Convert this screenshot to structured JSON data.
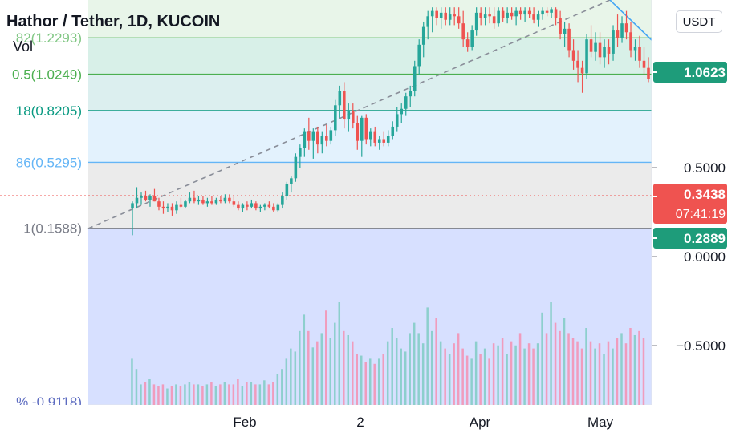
{
  "header": {
    "title": "Hathor / Tether, 1D, KUCOIN",
    "volume_label": "Vol",
    "currency": "USDT"
  },
  "colors": {
    "up": "#26a69a",
    "down": "#ef5350",
    "grid": "#f0f3fa",
    "axis_text": "#131722"
  },
  "chart_data": {
    "type": "candlestick",
    "x_ticks": [
      "Feb",
      "2",
      "Apr",
      "May"
    ],
    "y_ticks": [
      "0.5000",
      "0.0000",
      "−0.5000"
    ],
    "price_tags": [
      {
        "label": "1.0623",
        "color": "#1e9c7a"
      },
      {
        "label": "0.3438",
        "sublabel": "07:41:19",
        "color": "#ef5350"
      },
      {
        "label": "0.2889",
        "color": "#1e9c7a"
      }
    ],
    "fib_levels": [
      {
        "label": "82(1.2293)",
        "price": 1.2293,
        "color": "#81c784"
      },
      {
        "label": "0.5(1.0249)",
        "price": 1.0249,
        "color": "#4caf50"
      },
      {
        "label": "18(0.8205)",
        "price": 0.8205,
        "color": "#089981"
      },
      {
        "label": "86(0.5295)",
        "price": 0.5295,
        "color": "#64b5f6"
      },
      {
        "label": "1(0.1588)",
        "price": 0.1588,
        "color": "#787b86"
      },
      {
        "label": "% -0.9118)",
        "price": -0.9118,
        "color": "#5c6bc0"
      }
    ],
    "candles": {
      "start": "2022-01-12",
      "ohlc": [
        [
          0.27,
          0.31,
          0.12,
          0.3
        ],
        [
          0.3,
          0.39,
          0.27,
          0.33
        ],
        [
          0.33,
          0.36,
          0.29,
          0.34
        ],
        [
          0.34,
          0.37,
          0.31,
          0.32
        ],
        [
          0.32,
          0.35,
          0.28,
          0.34
        ],
        [
          0.34,
          0.38,
          0.31,
          0.31
        ],
        [
          0.31,
          0.33,
          0.26,
          0.28
        ],
        [
          0.28,
          0.31,
          0.24,
          0.27
        ],
        [
          0.27,
          0.3,
          0.25,
          0.28
        ],
        [
          0.28,
          0.3,
          0.23,
          0.26
        ],
        [
          0.26,
          0.31,
          0.24,
          0.29
        ],
        [
          0.29,
          0.33,
          0.27,
          0.28
        ],
        [
          0.28,
          0.32,
          0.27,
          0.31
        ],
        [
          0.31,
          0.36,
          0.3,
          0.33
        ],
        [
          0.33,
          0.37,
          0.3,
          0.31
        ],
        [
          0.31,
          0.34,
          0.29,
          0.32
        ],
        [
          0.32,
          0.34,
          0.29,
          0.3
        ],
        [
          0.3,
          0.33,
          0.28,
          0.31
        ],
        [
          0.31,
          0.34,
          0.29,
          0.3
        ],
        [
          0.3,
          0.33,
          0.29,
          0.32
        ],
        [
          0.32,
          0.34,
          0.3,
          0.31
        ],
        [
          0.31,
          0.35,
          0.3,
          0.33
        ],
        [
          0.33,
          0.35,
          0.3,
          0.31
        ],
        [
          0.31,
          0.34,
          0.28,
          0.29
        ],
        [
          0.29,
          0.31,
          0.26,
          0.27
        ],
        [
          0.27,
          0.3,
          0.25,
          0.29
        ],
        [
          0.29,
          0.31,
          0.26,
          0.28
        ],
        [
          0.28,
          0.32,
          0.27,
          0.3
        ],
        [
          0.3,
          0.31,
          0.26,
          0.27
        ],
        [
          0.27,
          0.29,
          0.25,
          0.28
        ],
        [
          0.28,
          0.3,
          0.26,
          0.29
        ],
        [
          0.29,
          0.31,
          0.27,
          0.28
        ],
        [
          0.28,
          0.3,
          0.25,
          0.26
        ],
        [
          0.26,
          0.3,
          0.25,
          0.29
        ],
        [
          0.29,
          0.36,
          0.27,
          0.34
        ],
        [
          0.34,
          0.42,
          0.32,
          0.41
        ],
        [
          0.41,
          0.45,
          0.36,
          0.44
        ],
        [
          0.44,
          0.58,
          0.42,
          0.56
        ],
        [
          0.56,
          0.63,
          0.5,
          0.61
        ],
        [
          0.61,
          0.72,
          0.56,
          0.7
        ],
        [
          0.7,
          0.78,
          0.6,
          0.65
        ],
        [
          0.65,
          0.72,
          0.55,
          0.7
        ],
        [
          0.7,
          0.73,
          0.58,
          0.63
        ],
        [
          0.63,
          0.7,
          0.58,
          0.68
        ],
        [
          0.68,
          0.74,
          0.62,
          0.65
        ],
        [
          0.65,
          0.73,
          0.63,
          0.71
        ],
        [
          0.71,
          0.88,
          0.68,
          0.85
        ],
        [
          0.85,
          0.96,
          0.78,
          0.93
        ],
        [
          0.93,
          0.98,
          0.72,
          0.77
        ],
        [
          0.77,
          0.86,
          0.7,
          0.82
        ],
        [
          0.82,
          0.86,
          0.72,
          0.75
        ],
        [
          0.75,
          0.79,
          0.6,
          0.65
        ],
        [
          0.65,
          0.79,
          0.56,
          0.78
        ],
        [
          0.78,
          0.8,
          0.63,
          0.66
        ],
        [
          0.66,
          0.72,
          0.62,
          0.7
        ],
        [
          0.7,
          0.73,
          0.62,
          0.64
        ],
        [
          0.64,
          0.68,
          0.6,
          0.66
        ],
        [
          0.66,
          0.7,
          0.62,
          0.64
        ],
        [
          0.64,
          0.71,
          0.62,
          0.68
        ],
        [
          0.68,
          0.76,
          0.66,
          0.73
        ],
        [
          0.73,
          0.84,
          0.7,
          0.8
        ],
        [
          0.8,
          0.86,
          0.75,
          0.83
        ],
        [
          0.83,
          0.92,
          0.79,
          0.9
        ],
        [
          0.9,
          0.96,
          0.84,
          0.93
        ],
        [
          0.93,
          1.1,
          0.9,
          1.07
        ],
        [
          1.07,
          1.22,
          1.02,
          1.19
        ],
        [
          1.19,
          1.32,
          1.12,
          1.29
        ],
        [
          1.29,
          1.38,
          1.22,
          1.35
        ],
        [
          1.35,
          1.4,
          1.26,
          1.38
        ],
        [
          1.38,
          1.4,
          1.3,
          1.34
        ],
        [
          1.34,
          1.4,
          1.28,
          1.37
        ],
        [
          1.37,
          1.4,
          1.3,
          1.33
        ],
        [
          1.33,
          1.4,
          1.3,
          1.36
        ],
        [
          1.36,
          1.4,
          1.3,
          1.35
        ],
        [
          1.35,
          1.4,
          1.28,
          1.31
        ],
        [
          1.31,
          1.38,
          1.18,
          1.22
        ],
        [
          1.22,
          1.26,
          1.15,
          1.18
        ],
        [
          1.18,
          1.3,
          1.16,
          1.27
        ],
        [
          1.27,
          1.4,
          1.24,
          1.37
        ],
        [
          1.37,
          1.4,
          1.3,
          1.34
        ],
        [
          1.34,
          1.4,
          1.3,
          1.36
        ],
        [
          1.36,
          1.4,
          1.31,
          1.35
        ],
        [
          1.35,
          1.4,
          1.28,
          1.31
        ],
        [
          1.31,
          1.4,
          1.29,
          1.38
        ],
        [
          1.38,
          1.4,
          1.32,
          1.34
        ],
        [
          1.34,
          1.4,
          1.31,
          1.37
        ],
        [
          1.37,
          1.4,
          1.33,
          1.35
        ],
        [
          1.35,
          1.4,
          1.3,
          1.38
        ],
        [
          1.38,
          1.4,
          1.33,
          1.36
        ],
        [
          1.36,
          1.4,
          1.32,
          1.38
        ],
        [
          1.38,
          1.4,
          1.34,
          1.36
        ],
        [
          1.36,
          1.4,
          1.31,
          1.33
        ],
        [
          1.33,
          1.38,
          1.29,
          1.36
        ],
        [
          1.36,
          1.4,
          1.33,
          1.38
        ],
        [
          1.38,
          1.4,
          1.35,
          1.37
        ],
        [
          1.37,
          1.4,
          1.34,
          1.39
        ],
        [
          1.39,
          1.4,
          1.3,
          1.34
        ],
        [
          1.34,
          1.38,
          1.22,
          1.25
        ],
        [
          1.25,
          1.32,
          1.18,
          1.28
        ],
        [
          1.28,
          1.31,
          1.12,
          1.16
        ],
        [
          1.16,
          1.22,
          1.05,
          1.1
        ],
        [
          1.1,
          1.16,
          0.98,
          1.06
        ],
        [
          1.06,
          1.1,
          0.92,
          1.03
        ],
        [
          1.03,
          1.25,
          1.0,
          1.22
        ],
        [
          1.22,
          1.3,
          1.12,
          1.15
        ],
        [
          1.15,
          1.26,
          1.1,
          1.2
        ],
        [
          1.2,
          1.26,
          1.08,
          1.12
        ],
        [
          1.12,
          1.22,
          1.06,
          1.18
        ],
        [
          1.18,
          1.22,
          1.08,
          1.14
        ],
        [
          1.14,
          1.3,
          1.1,
          1.27
        ],
        [
          1.27,
          1.36,
          1.18,
          1.23
        ],
        [
          1.23,
          1.35,
          1.2,
          1.31
        ],
        [
          1.31,
          1.38,
          1.22,
          1.26
        ],
        [
          1.26,
          1.32,
          1.12,
          1.16
        ],
        [
          1.16,
          1.22,
          1.1,
          1.18
        ],
        [
          1.18,
          1.24,
          1.06,
          1.1
        ],
        [
          1.1,
          1.18,
          1.02,
          1.06
        ],
        [
          1.06,
          1.12,
          0.98,
          1.0
        ]
      ],
      "volume": [
        0.45,
        0.35,
        0.2,
        0.22,
        0.25,
        0.2,
        0.18,
        0.2,
        0.16,
        0.18,
        0.2,
        0.18,
        0.2,
        0.22,
        0.2,
        0.2,
        0.18,
        0.2,
        0.22,
        0.18,
        0.2,
        0.22,
        0.2,
        0.2,
        0.25,
        0.18,
        0.22,
        0.22,
        0.2,
        0.2,
        0.24,
        0.2,
        0.22,
        0.3,
        0.35,
        0.45,
        0.55,
        0.52,
        0.72,
        0.88,
        0.72,
        0.56,
        0.62,
        0.7,
        0.92,
        0.65,
        0.8,
        1.0,
        0.72,
        0.68,
        0.62,
        0.5,
        0.48,
        0.42,
        0.45,
        0.4,
        0.45,
        0.5,
        0.62,
        0.75,
        0.65,
        0.55,
        0.52,
        0.7,
        0.8,
        0.7,
        0.6,
        0.95,
        0.72,
        0.85,
        0.62,
        0.55,
        0.5,
        0.6,
        0.7,
        0.55,
        0.48,
        0.45,
        0.62,
        0.5,
        0.55,
        0.45,
        0.6,
        0.58,
        0.65,
        0.5,
        0.62,
        0.58,
        0.7,
        0.55,
        0.6,
        0.55,
        0.6,
        0.9,
        0.7,
        1.0,
        0.8,
        0.72,
        0.85,
        0.7,
        0.65,
        0.62,
        0.55,
        0.75,
        0.62,
        0.55,
        0.6,
        0.5,
        0.62,
        0.55,
        0.65,
        0.7,
        0.6,
        0.75,
        0.68,
        0.72,
        0.65
      ]
    }
  }
}
